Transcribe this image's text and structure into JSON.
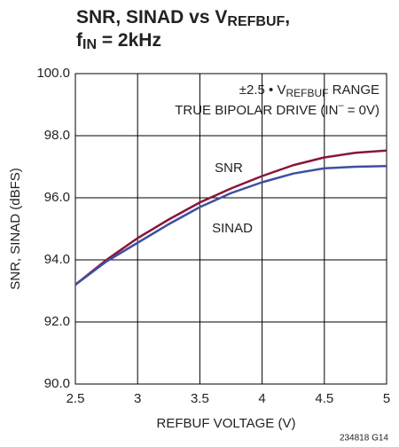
{
  "chart_data": {
    "type": "line",
    "title_line1": [
      "SNR, SINAD vs V",
      "REFBUF",
      ","
    ],
    "title_line2": [
      "f",
      "IN",
      " = 2kHz"
    ],
    "annotation_line1": [
      "±2.5 • V",
      "REFBUF",
      " RANGE"
    ],
    "annotation_line2": [
      "TRUE BIPOLAR DRIVE  (IN",
      "–",
      " = 0V)"
    ],
    "xlabel": "REFBUF VOLTAGE (V)",
    "ylabel": "SNR, SINAD (dBFS)",
    "footnote": "234818 G14",
    "x": [
      2.5,
      2.75,
      3,
      3.25,
      3.5,
      3.75,
      4,
      4.25,
      4.5,
      4.75,
      5
    ],
    "series": [
      {
        "name": "SNR",
        "color": "#8a1538",
        "values": [
          93.2,
          94.0,
          94.7,
          95.3,
          95.85,
          96.3,
          96.7,
          97.05,
          97.3,
          97.45,
          97.52
        ]
      },
      {
        "name": "SINAD",
        "color": "#3d4fa3",
        "values": [
          93.2,
          93.95,
          94.55,
          95.15,
          95.7,
          96.15,
          96.5,
          96.78,
          96.95,
          97.0,
          97.02
        ]
      }
    ],
    "xlim": [
      2.5,
      5
    ],
    "ylim": [
      90,
      100
    ],
    "xticks": [
      2.5,
      3,
      3.5,
      4,
      4.5,
      5
    ],
    "yticks": [
      {
        "value": 90,
        "label": "90.0"
      },
      {
        "value": 92,
        "label": "92.0"
      },
      {
        "value": 94,
        "label": "94.0"
      },
      {
        "value": 96,
        "label": "96.0"
      },
      {
        "value": 98,
        "label": "98.0"
      },
      {
        "value": 100,
        "label": "100.0"
      }
    ],
    "grid": true
  }
}
